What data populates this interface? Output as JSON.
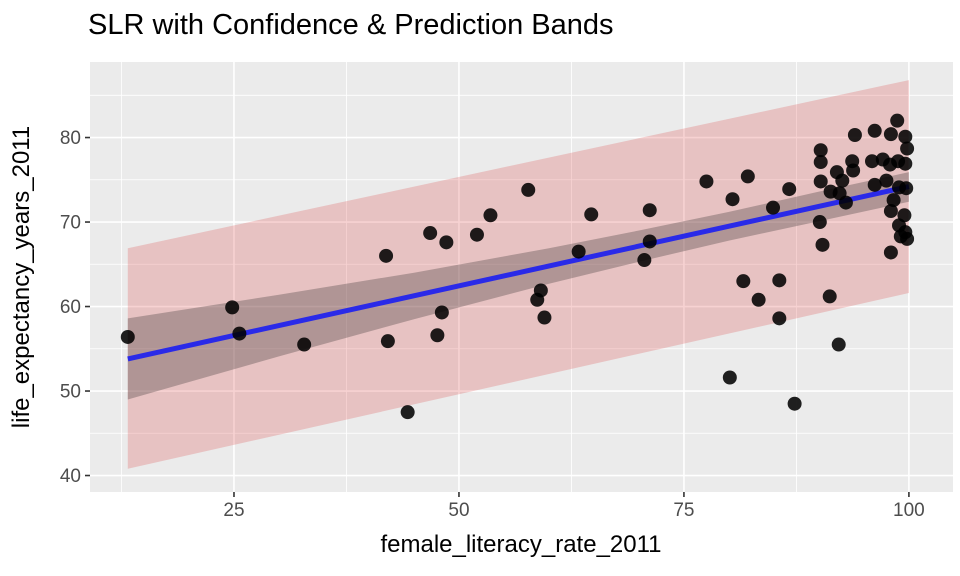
{
  "chart_data": {
    "type": "scatter",
    "title": "SLR with Confidence & Prediction Bands",
    "xlabel": "female_literacy_rate_2011",
    "ylabel": "life_expectancy_years_2011",
    "xlim": [
      9.0,
      104.9
    ],
    "ylim": [
      38.05,
      88.94
    ],
    "x_ticks": [
      25,
      50,
      75,
      100
    ],
    "y_ticks": [
      40,
      50,
      60,
      70,
      80
    ],
    "x_minor": [
      12.5,
      37.5,
      62.5,
      87.5
    ],
    "y_minor": [
      45,
      55,
      65,
      75,
      85
    ],
    "grid": "white major+minor gridlines on gray panel, no legend",
    "regression_line": {
      "slope": 0.235,
      "intercept": 50.7,
      "x_range": [
        13.2,
        100
      ]
    },
    "confidence_band": {
      "x": [
        13.2,
        30.0,
        45.0,
        60.0,
        70.0,
        80.0,
        90.0,
        100.0
      ],
      "upper": [
        58.6,
        61.4,
        64.0,
        66.9,
        69.0,
        71.2,
        73.6,
        75.9
      ],
      "lower": [
        49.0,
        54.1,
        58.5,
        62.7,
        65.3,
        67.8,
        70.1,
        72.4
      ]
    },
    "prediction_band": {
      "x": [
        13.2,
        100.0
      ],
      "upper": [
        66.9,
        86.8
      ],
      "lower": [
        40.8,
        61.6
      ]
    },
    "points": [
      [
        13.2,
        56.4
      ],
      [
        24.8,
        59.9
      ],
      [
        25.6,
        56.8
      ],
      [
        32.8,
        55.5
      ],
      [
        41.9,
        66.0
      ],
      [
        42.1,
        55.9
      ],
      [
        44.3,
        47.5
      ],
      [
        46.8,
        68.7
      ],
      [
        47.6,
        56.6
      ],
      [
        48.1,
        59.3
      ],
      [
        48.6,
        67.6
      ],
      [
        52.0,
        68.5
      ],
      [
        53.5,
        70.8
      ],
      [
        57.7,
        73.8
      ],
      [
        58.7,
        60.8
      ],
      [
        59.1,
        61.9
      ],
      [
        59.5,
        58.7
      ],
      [
        63.3,
        66.5
      ],
      [
        64.7,
        70.9
      ],
      [
        70.6,
        65.5
      ],
      [
        71.2,
        71.4
      ],
      [
        71.2,
        67.7
      ],
      [
        77.5,
        74.8
      ],
      [
        80.1,
        51.6
      ],
      [
        80.4,
        72.7
      ],
      [
        81.6,
        63.0
      ],
      [
        82.1,
        75.4
      ],
      [
        83.3,
        60.8
      ],
      [
        84.9,
        71.7
      ],
      [
        85.6,
        63.1
      ],
      [
        85.6,
        58.6
      ],
      [
        86.7,
        73.9
      ],
      [
        87.3,
        48.5
      ],
      [
        90.2,
        78.5
      ],
      [
        90.2,
        77.1
      ],
      [
        90.2,
        74.8
      ],
      [
        90.1,
        70.0
      ],
      [
        90.4,
        67.3
      ],
      [
        91.2,
        61.2
      ],
      [
        91.3,
        73.6
      ],
      [
        92.0,
        75.9
      ],
      [
        92.2,
        55.5
      ],
      [
        92.3,
        73.4
      ],
      [
        92.6,
        74.9
      ],
      [
        93.0,
        72.3
      ],
      [
        93.7,
        77.2
      ],
      [
        93.8,
        76.1
      ],
      [
        94.0,
        80.3
      ],
      [
        95.9,
        77.2
      ],
      [
        96.2,
        80.8
      ],
      [
        96.2,
        74.4
      ],
      [
        97.1,
        77.4
      ],
      [
        97.5,
        74.9
      ],
      [
        97.9,
        76.8
      ],
      [
        98.0,
        80.4
      ],
      [
        98.0,
        71.3
      ],
      [
        98.0,
        66.4
      ],
      [
        98.3,
        72.6
      ],
      [
        98.7,
        82.0
      ],
      [
        98.8,
        77.2
      ],
      [
        98.9,
        74.1
      ],
      [
        98.9,
        69.6
      ],
      [
        99.1,
        68.3
      ],
      [
        99.5,
        70.8
      ],
      [
        99.6,
        76.9
      ],
      [
        99.6,
        68.8
      ],
      [
        99.6,
        80.1
      ],
      [
        99.7,
        74.0
      ],
      [
        99.8,
        78.7
      ],
      [
        99.8,
        68.0
      ]
    ],
    "colors": {
      "panel_bg": "#EBEBEB",
      "gridline": "#FFFFFF",
      "prediction_band": "rgba(217,48,48,0.22)",
      "confidence_band": "rgba(70,62,62,0.34)",
      "regression_line": "#2A2AE8",
      "point": "#000000",
      "tick_label": "#4D4D4D",
      "tick_mark": "#333333"
    }
  }
}
